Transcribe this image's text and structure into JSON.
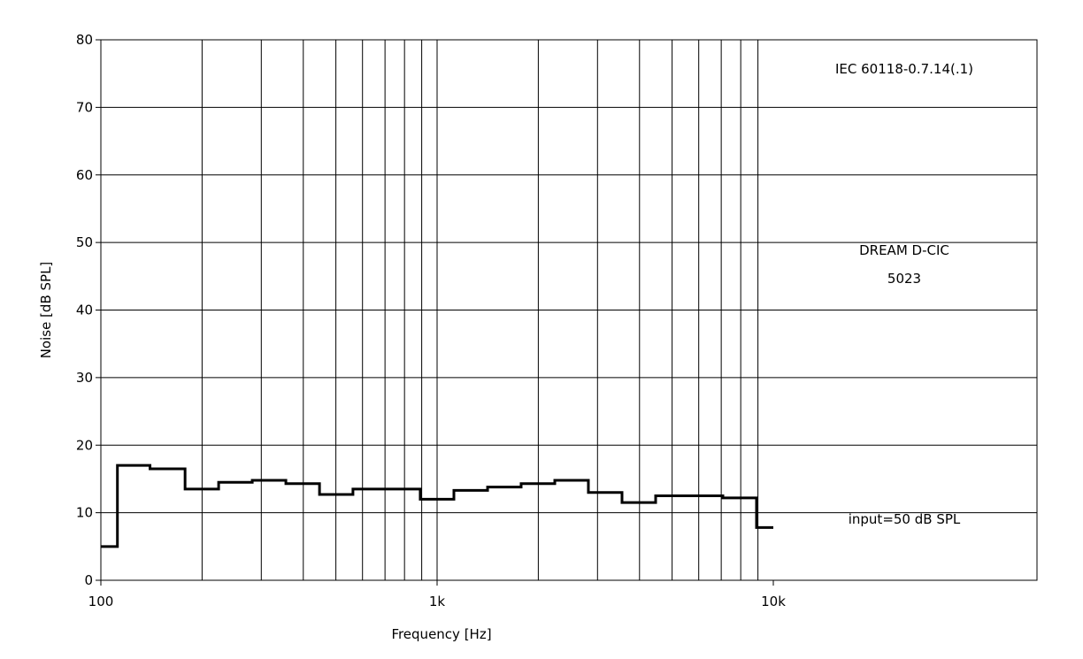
{
  "chart_data": {
    "type": "line",
    "line_style": "step",
    "xscale": "log",
    "xlabel": "Frequency [Hz]",
    "ylabel": "Noise [dB SPL]",
    "xlim": [
      100,
      10000
    ],
    "ylim": [
      0,
      80
    ],
    "grid": true,
    "y_ticks": [
      0,
      10,
      20,
      30,
      40,
      50,
      60,
      70,
      80
    ],
    "x_tick_labels": [
      {
        "value": 100,
        "label": "100"
      },
      {
        "value": 1000,
        "label": "1k"
      },
      {
        "value": 10000,
        "label": "10k"
      }
    ],
    "annotations": {
      "standard": "IEC 60118-0.7.14(.1)",
      "device_line1": "DREAM D-CIC",
      "device_line2": "5023",
      "input_level": "input=50 dB SPL"
    },
    "series": [
      {
        "color": "#000000",
        "x": [
          100,
          112,
          140,
          178,
          224,
          282,
          355,
          447,
          562,
          708,
          891,
          1122,
          1413,
          1778,
          2239,
          2818,
          3548,
          4467,
          5623,
          7079,
          8913,
          10000
        ],
        "y": [
          5,
          17,
          16.5,
          13.5,
          14.5,
          14.8,
          14.3,
          12.7,
          13.5,
          13.5,
          12,
          13.3,
          13.8,
          14.3,
          14.8,
          13,
          11.5,
          12.5,
          12.5,
          12.2,
          7.8,
          7.8
        ]
      }
    ]
  }
}
